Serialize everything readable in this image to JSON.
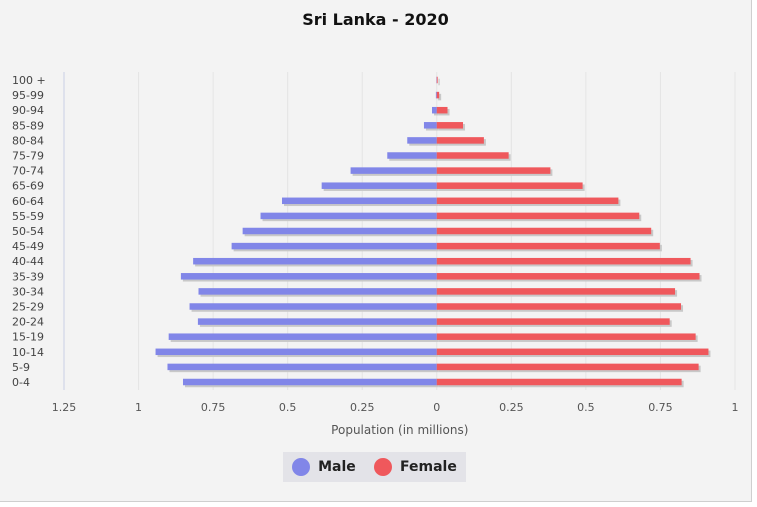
{
  "chart_data": {
    "type": "bar",
    "title": "Sri Lanka - 2020",
    "xlabel": "Population (in millions)",
    "ylabel": "",
    "categories": [
      "100 +",
      "95-99",
      "90-94",
      "85-89",
      "80-84",
      "75-79",
      "70-74",
      "65-69",
      "60-64",
      "55-59",
      "50-54",
      "45-49",
      "40-44",
      "35-39",
      "30-34",
      "25-29",
      "20-24",
      "15-19",
      "10-14",
      "5-9",
      "0-4"
    ],
    "series": [
      {
        "name": "Male",
        "color": "#8186e8",
        "values": [
          0.001,
          0.003,
          0.016,
          0.043,
          0.099,
          0.166,
          0.289,
          0.386,
          0.519,
          0.591,
          0.651,
          0.688,
          0.817,
          0.858,
          0.799,
          0.829,
          0.801,
          0.899,
          0.943,
          0.903,
          0.851
        ]
      },
      {
        "name": "Female",
        "color": "#ef585c",
        "values": [
          0.003,
          0.008,
          0.036,
          0.088,
          0.158,
          0.241,
          0.381,
          0.489,
          0.609,
          0.679,
          0.719,
          0.748,
          0.851,
          0.881,
          0.799,
          0.819,
          0.781,
          0.868,
          0.911,
          0.878,
          0.821
        ]
      }
    ],
    "xlim": [
      -1.25,
      1
    ],
    "xticks": [
      "1.25",
      "1",
      "0.75",
      "0.5",
      "0.25",
      "0",
      "0.25",
      "0.5",
      "0.75",
      "1"
    ],
    "grid": true,
    "legend_position": "bottom"
  },
  "legend": {
    "male": "Male",
    "female": "Female"
  }
}
